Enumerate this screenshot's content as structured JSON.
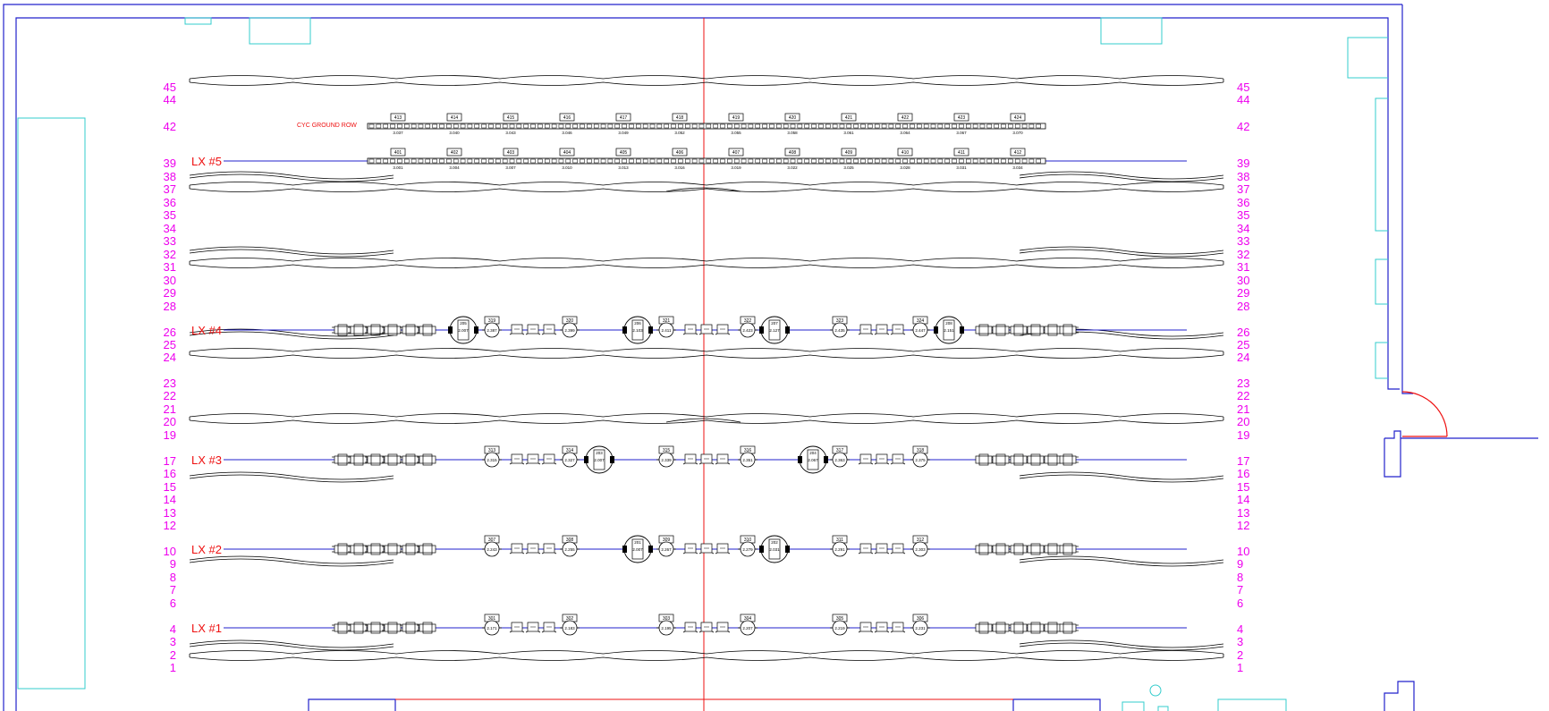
{
  "line_numbers": [
    "45",
    "44",
    "42",
    "39",
    "38",
    "37",
    "36",
    "35",
    "34",
    "33",
    "32",
    "31",
    "30",
    "29",
    "28",
    "26",
    "25",
    "24",
    "23",
    "22",
    "21",
    "20",
    "19",
    "17",
    "16",
    "15",
    "14",
    "13",
    "12",
    "10",
    "9",
    "8",
    "7",
    "6",
    "4",
    "3",
    "2",
    "1"
  ],
  "electrics": [
    {
      "label": "LX #5",
      "line": "39"
    },
    {
      "label": "LX #4",
      "line": "26"
    },
    {
      "label": "LX #3",
      "line": "17"
    },
    {
      "label": "LX #2",
      "line": "10"
    },
    {
      "label": "LX #1",
      "line": "4"
    }
  ],
  "cyc_label": "CYC GROUND ROW",
  "cyc_ground_row": {
    "channels": [
      "413",
      "414",
      "415",
      "416",
      "417",
      "418",
      "419",
      "420",
      "421",
      "422",
      "423",
      "424"
    ],
    "addresses": [
      "3.037",
      "3.040",
      "3.043",
      "3.046",
      "3.049",
      "3.052",
      "3.055",
      "3.058",
      "3.061",
      "3.064",
      "3.067",
      "3.070"
    ]
  },
  "lx5": {
    "channels": [
      "401",
      "402",
      "403",
      "404",
      "405",
      "406",
      "407",
      "408",
      "409",
      "410",
      "411",
      "412"
    ],
    "addresses": [
      "3.001",
      "3.004",
      "3.007",
      "3.010",
      "3.013",
      "3.016",
      "3.019",
      "3.022",
      "3.025",
      "3.028",
      "3.031",
      "3.034"
    ]
  },
  "lx4": {
    "movers": [
      {
        "channel": "205",
        "address": "2.007"
      },
      {
        "channel": "206",
        "address": "2.103"
      },
      {
        "channel": "207",
        "address": "2.127"
      },
      {
        "channel": "208",
        "address": "2.151"
      }
    ],
    "fixtures": [
      {
        "channel": "319",
        "address": "2.387"
      },
      {
        "channel": "320",
        "address": "2.399"
      },
      {
        "channel": "321",
        "address": "2.411"
      },
      {
        "channel": "322",
        "address": "2.423"
      },
      {
        "channel": "323",
        "address": "2.435"
      },
      {
        "channel": "324",
        "address": "2.447"
      }
    ]
  },
  "lx3": {
    "movers": [
      {
        "channel": "203",
        "address": "2.007"
      },
      {
        "channel": "204",
        "address": "2.067"
      }
    ],
    "fixtures": [
      {
        "channel": "313",
        "address": "2.315"
      },
      {
        "channel": "314",
        "address": "2.327"
      },
      {
        "channel": "315",
        "address": "2.339"
      },
      {
        "channel": "316",
        "address": "2.351"
      },
      {
        "channel": "317",
        "address": "2.363"
      },
      {
        "channel": "318",
        "address": "2.375"
      }
    ]
  },
  "lx2": {
    "movers": [
      {
        "channel": "201",
        "address": "2.007"
      },
      {
        "channel": "202",
        "address": "2.031"
      }
    ],
    "fixtures": [
      {
        "channel": "307",
        "address": "2.243"
      },
      {
        "channel": "308",
        "address": "2.255"
      },
      {
        "channel": "309",
        "address": "2.267"
      },
      {
        "channel": "310",
        "address": "2.279"
      },
      {
        "channel": "311",
        "address": "2.291"
      },
      {
        "channel": "312",
        "address": "2.303"
      }
    ]
  },
  "lx1": {
    "fixtures": [
      {
        "channel": "301",
        "address": "2.171"
      },
      {
        "channel": "302",
        "address": "2.183"
      },
      {
        "channel": "303",
        "address": "2.195"
      },
      {
        "channel": "304",
        "address": "2.207"
      },
      {
        "channel": "305",
        "address": "2.219"
      },
      {
        "channel": "306",
        "address": "2.231"
      }
    ]
  },
  "colors": {
    "wall": "#2222cc",
    "centerline": "#ee1111",
    "linenumber": "#ee00ee",
    "architecture": "#33cccc",
    "drape": "#000000"
  }
}
